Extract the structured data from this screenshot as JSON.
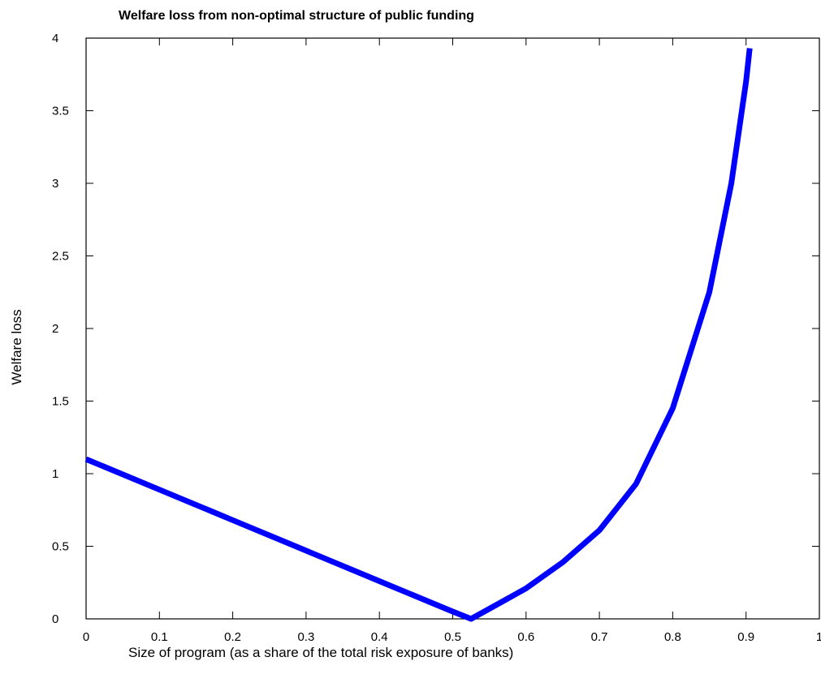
{
  "chart_data": {
    "type": "line",
    "title": "Welfare loss from non-optimal structure of public funding",
    "xlabel": "Size of program (as a share of the total risk exposure of banks)",
    "ylabel": "Welfare loss",
    "xlim": [
      0,
      1
    ],
    "ylim": [
      0,
      4
    ],
    "x_ticks": [
      "0",
      "0.1",
      "0.2",
      "0.3",
      "0.4",
      "0.5",
      "0.6",
      "0.7",
      "0.8",
      "0.9",
      "1"
    ],
    "y_ticks": [
      "0",
      "0.5",
      "1",
      "1.5",
      "2",
      "2.5",
      "3",
      "3.5",
      "4"
    ],
    "grid": false,
    "series": [
      {
        "color": "#0000ff",
        "x": [
          0,
          0.1,
          0.2,
          0.3,
          0.4,
          0.5,
          0.525,
          0.55,
          0.6,
          0.65,
          0.7,
          0.75,
          0.8,
          0.85,
          0.88,
          0.9,
          0.905
        ],
        "y": [
          1.1,
          0.89,
          0.68,
          0.47,
          0.26,
          0.05,
          0.0,
          0.07,
          0.21,
          0.39,
          0.61,
          0.93,
          1.45,
          2.25,
          3.0,
          3.7,
          3.93
        ]
      }
    ]
  }
}
